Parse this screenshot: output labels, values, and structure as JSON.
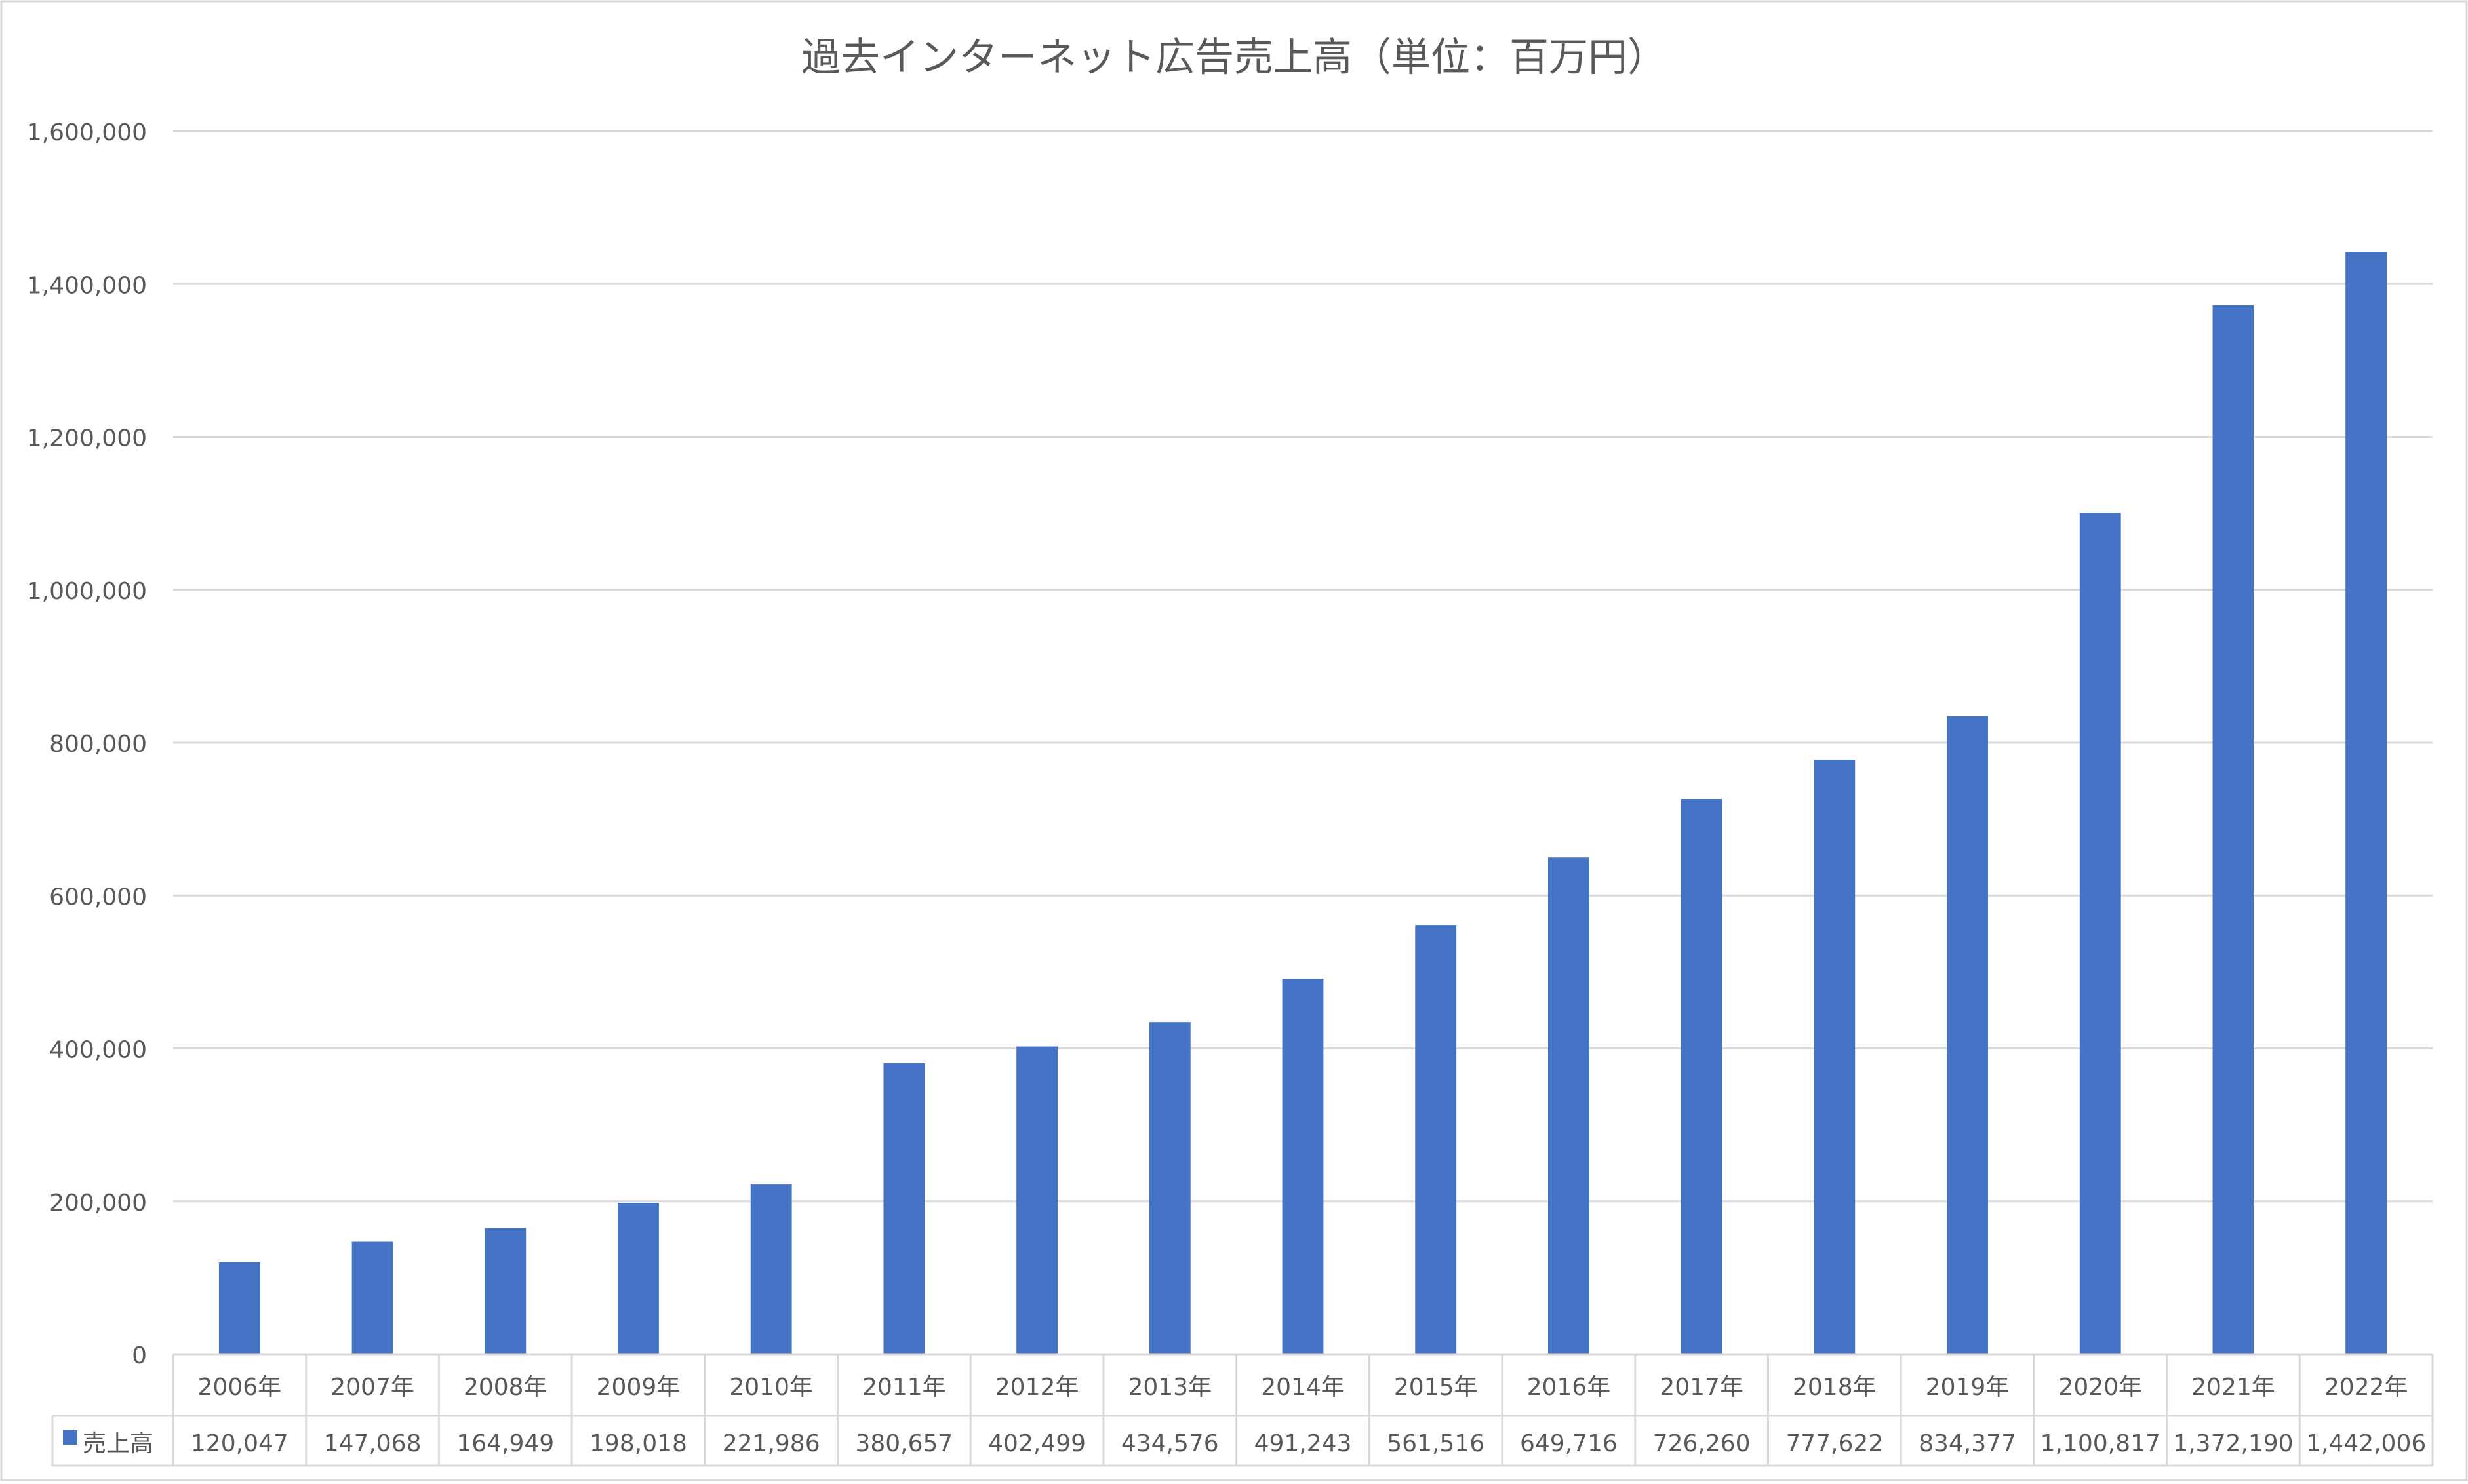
{
  "chart_data": {
    "type": "bar",
    "title": "過去インターネット広告売上高（単位：百万円）",
    "xlabel": "",
    "ylabel": "",
    "categories": [
      "2006年",
      "2007年",
      "2008年",
      "2009年",
      "2010年",
      "2011年",
      "2012年",
      "2013年",
      "2014年",
      "2015年",
      "2016年",
      "2017年",
      "2018年",
      "2019年",
      "2020年",
      "2021年",
      "2022年"
    ],
    "series": [
      {
        "name": "売上高",
        "values": [
          120047,
          147068,
          164949,
          198018,
          221986,
          380657,
          402499,
          434576,
          491243,
          561516,
          649716,
          726260,
          777622,
          834377,
          1100817,
          1372190,
          1442006
        ],
        "value_labels": [
          "120,047",
          "147,068",
          "164,949",
          "198,018",
          "221,986",
          "380,657",
          "402,499",
          "434,576",
          "491,243",
          "561,516",
          "649,716",
          "726,260",
          "777,622",
          "834,377",
          "1,100,817",
          "1,372,190",
          "1,442,006"
        ]
      }
    ],
    "ylim": [
      0,
      1600000
    ],
    "yticks": [
      0,
      200000,
      400000,
      600000,
      800000,
      1000000,
      1200000,
      1400000,
      1600000
    ],
    "ytick_labels": [
      "0",
      "200,000",
      "400,000",
      "600,000",
      "800,000",
      "1,000,000",
      "1,200,000",
      "1,400,000",
      "1,600,000"
    ],
    "grid": true,
    "data_table": true,
    "legend": "data-table-left",
    "colors": {
      "bar": "#4472C4",
      "grid": "#D9D9D9",
      "text": "#595959",
      "border": "#D9D9D9"
    }
  }
}
